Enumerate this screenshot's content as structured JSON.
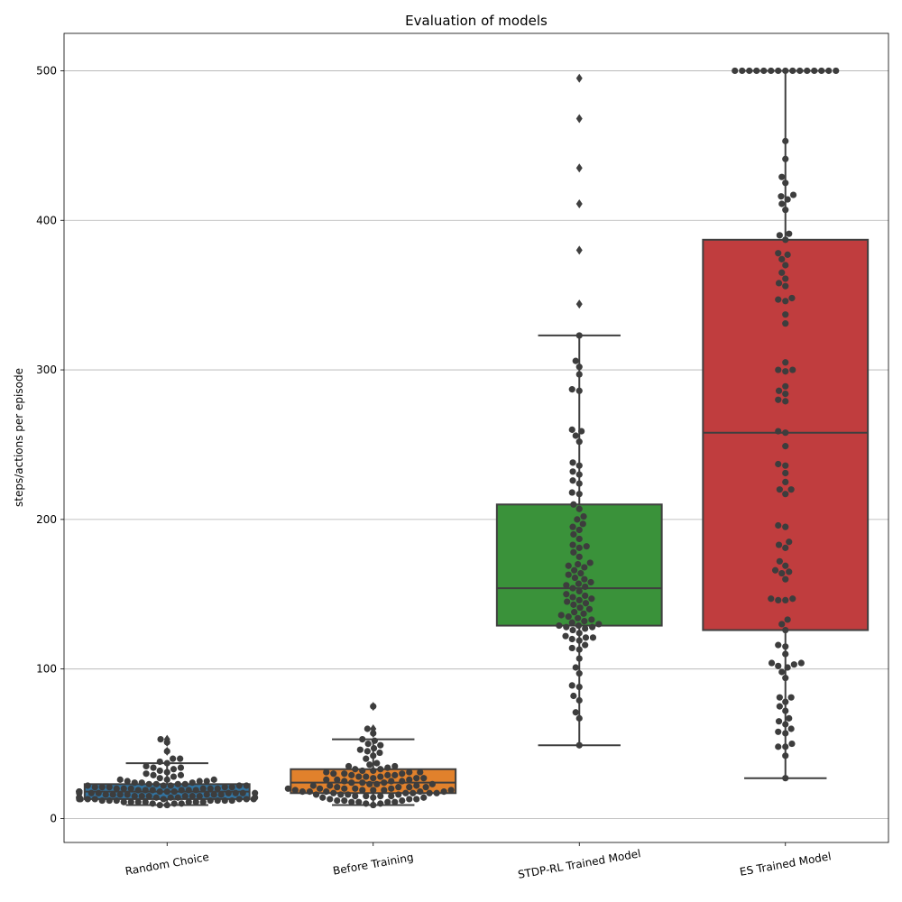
{
  "chart_data": {
    "type": "box",
    "title": "Evaluation of models",
    "xlabel": "",
    "ylabel": "steps/actions per episode",
    "ylim": [
      -16,
      525
    ],
    "yticks": [
      0,
      100,
      200,
      300,
      400,
      500
    ],
    "grid": "horizontal",
    "categories": [
      "Random Choice",
      "Before Training",
      "STDP-RL Trained Model",
      "ES Trained Model"
    ],
    "colors": {
      "Random Choice": "#3274a1",
      "Before Training": "#e1812c",
      "STDP-RL Trained Model": "#3a923a",
      "ES Trained Model": "#c03d3e"
    },
    "boxes": [
      {
        "category": "Random Choice",
        "whisker_low": 9,
        "q1": 13,
        "median": 18,
        "q3": 23,
        "whisker_high": 37,
        "outliers": [
          45,
          51,
          53
        ]
      },
      {
        "category": "Before Training",
        "whisker_low": 9,
        "q1": 17,
        "median": 24,
        "q3": 33,
        "whisker_high": 53,
        "outliers": [
          57,
          60,
          75
        ]
      },
      {
        "category": "STDP-RL Trained Model",
        "whisker_low": 49,
        "q1": 129,
        "median": 154,
        "q3": 210,
        "whisker_high": 323,
        "outliers": [
          344,
          380,
          411,
          435,
          468,
          495
        ]
      },
      {
        "category": "ES Trained Model",
        "whisker_low": 27,
        "q1": 126,
        "median": 258,
        "q3": 387,
        "whisker_high": 500,
        "outliers": []
      }
    ],
    "swarm": [
      {
        "category": "Random Choice",
        "values": [
          9,
          9,
          10,
          10,
          10,
          11,
          11,
          11,
          11,
          11,
          11,
          11,
          12,
          12,
          12,
          12,
          12,
          12,
          12,
          13,
          13,
          13,
          13,
          13,
          13,
          13,
          13,
          14,
          14,
          14,
          14,
          14,
          14,
          14,
          15,
          15,
          15,
          15,
          15,
          15,
          16,
          16,
          16,
          16,
          16,
          16,
          16,
          17,
          17,
          17,
          17,
          17,
          17,
          17,
          18,
          18,
          18,
          18,
          18,
          18,
          18,
          19,
          19,
          19,
          19,
          19,
          19,
          20,
          20,
          20,
          20,
          20,
          20,
          21,
          21,
          21,
          21,
          21,
          22,
          22,
          22,
          22,
          22,
          23,
          23,
          23,
          23,
          24,
          24,
          24,
          25,
          25,
          25,
          26,
          26,
          26,
          27,
          28,
          29,
          29,
          30,
          31,
          32,
          33,
          34,
          34,
          35,
          37,
          38,
          40,
          40,
          45,
          51,
          53
        ]
      },
      {
        "category": "Before Training",
        "values": [
          9,
          10,
          10,
          11,
          11,
          11,
          11,
          12,
          12,
          12,
          13,
          13,
          13,
          14,
          14,
          14,
          15,
          15,
          15,
          15,
          16,
          16,
          16,
          16,
          17,
          17,
          17,
          17,
          17,
          18,
          18,
          18,
          18,
          18,
          19,
          19,
          19,
          19,
          19,
          20,
          20,
          20,
          20,
          20,
          21,
          21,
          21,
          21,
          22,
          22,
          22,
          23,
          23,
          23,
          24,
          24,
          24,
          25,
          25,
          25,
          26,
          26,
          26,
          27,
          27,
          27,
          28,
          28,
          28,
          29,
          29,
          29,
          30,
          30,
          30,
          31,
          31,
          31,
          32,
          32,
          33,
          33,
          34,
          35,
          35,
          36,
          37,
          40,
          42,
          44,
          45,
          46,
          47,
          49,
          50,
          52,
          53,
          57,
          60,
          75
        ]
      },
      {
        "category": "STDP-RL Trained Model",
        "values": [
          49,
          67,
          71,
          79,
          82,
          88,
          89,
          97,
          101,
          107,
          113,
          114,
          116,
          119,
          120,
          121,
          121,
          122,
          124,
          126,
          127,
          128,
          128,
          129,
          129,
          130,
          131,
          132,
          133,
          134,
          135,
          136,
          137,
          138,
          140,
          141,
          143,
          144,
          145,
          146,
          147,
          148,
          149,
          150,
          152,
          154,
          155,
          156,
          157,
          158,
          160,
          161,
          163,
          164,
          166,
          168,
          169,
          170,
          171,
          175,
          178,
          181,
          182,
          183,
          187,
          190,
          193,
          195,
          197,
          200,
          202,
          207,
          210,
          217,
          218,
          224,
          226,
          230,
          232,
          236,
          238,
          252,
          256,
          259,
          260,
          286,
          287,
          297,
          302,
          306,
          323
        ]
      },
      {
        "category": "ES Trained Model",
        "values": [
          27,
          42,
          48,
          48,
          50,
          57,
          58,
          60,
          63,
          65,
          67,
          72,
          75,
          78,
          81,
          81,
          94,
          98,
          101,
          102,
          103,
          104,
          104,
          110,
          115,
          116,
          126,
          130,
          133,
          146,
          146,
          147,
          147,
          160,
          164,
          165,
          166,
          169,
          172,
          181,
          183,
          185,
          195,
          196,
          217,
          220,
          220,
          225,
          231,
          236,
          237,
          249,
          258,
          259,
          279,
          280,
          284,
          286,
          289,
          299,
          300,
          300,
          305,
          331,
          337,
          346,
          347,
          348,
          356,
          358,
          361,
          365,
          370,
          374,
          377,
          378,
          387,
          390,
          391,
          407,
          411,
          414,
          416,
          417,
          425,
          429,
          441,
          453,
          500,
          500,
          500,
          500,
          500,
          500,
          500,
          500,
          500,
          500,
          500,
          500,
          500,
          500,
          500
        ]
      }
    ]
  }
}
